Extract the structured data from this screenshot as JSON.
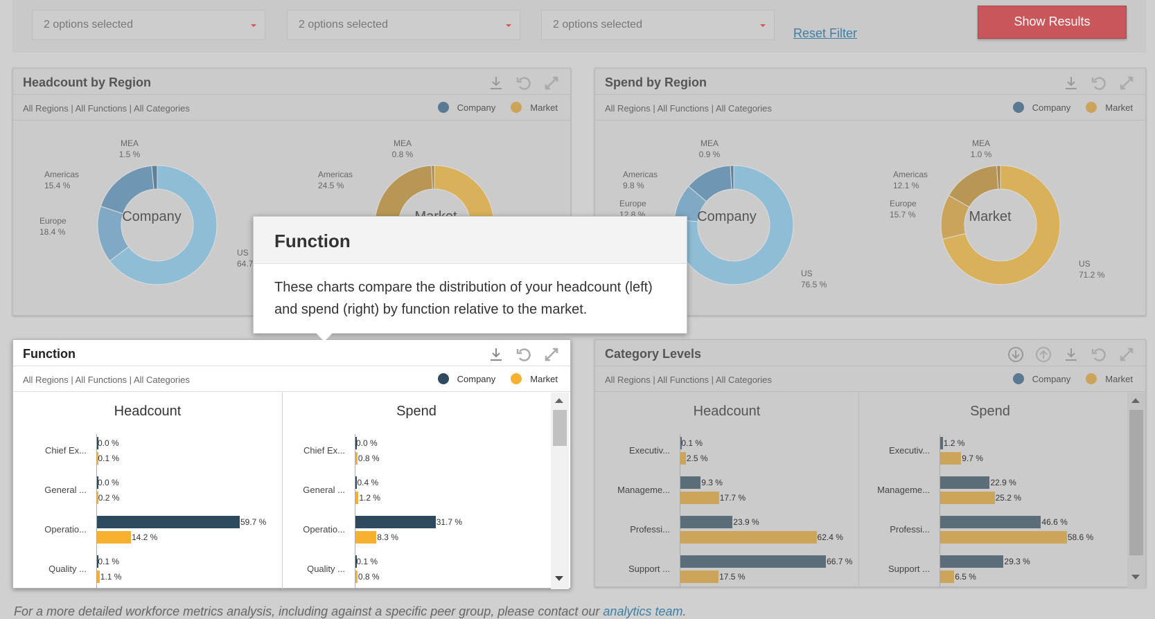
{
  "filters": [
    {
      "value": "2 options selected"
    },
    {
      "value": "2 options selected"
    },
    {
      "value": "2 options selected"
    }
  ],
  "reset_label": "Reset Filter",
  "show_label": "Show Results",
  "breadcrumb": "All Regions | All Functions | All Categories",
  "legend": {
    "company": "Company",
    "market": "Market"
  },
  "colors": {
    "company": "#2d4a5e",
    "market": "#f7b02f",
    "company_dim": "#5a6d79",
    "market_dim": "#cda55a",
    "donut_company": "#8eb8cf",
    "donut_market": "#d8b25e",
    "primary": "#c9565a",
    "link": "#3d7fa6"
  },
  "panels": {
    "headcount_region": {
      "title": "Headcount by Region"
    },
    "spend_region": {
      "title": "Spend by Region"
    },
    "function": {
      "title": "Function"
    },
    "category": {
      "title": "Category Levels"
    }
  },
  "tooltip": {
    "title": "Function",
    "body": "These charts compare the distribution of your headcount (left) and spend (right) by function relative to the market."
  },
  "footer": {
    "text": "For a more detailed workforce metrics analysis, including against a specific peer group, please contact our ",
    "link": "analytics team",
    "end": "."
  },
  "chart_data": [
    {
      "type": "pie",
      "title": "Company",
      "panel": "Headcount by Region",
      "labels": [
        "US",
        "Americas",
        "Europe",
        "MEA"
      ],
      "values": [
        64.7,
        15.4,
        18.4,
        1.5
      ],
      "value_labels": [
        "64.7",
        "15.4 %",
        "18.4 %",
        "1.5 %"
      ]
    },
    {
      "type": "pie",
      "title": "Market",
      "panel": "Headcount by Region",
      "labels": [
        "US",
        "Americas",
        "Europe",
        "MEA"
      ],
      "values": [
        null,
        24.5,
        null,
        0.8
      ],
      "value_labels": [
        "",
        "24.5 %",
        "",
        "0.8 %"
      ]
    },
    {
      "type": "pie",
      "title": "Company",
      "panel": "Spend by Region",
      "labels": [
        "US",
        "Americas",
        "Europe",
        "MEA"
      ],
      "values": [
        76.5,
        9.8,
        12.8,
        0.9
      ],
      "value_labels": [
        "76.5 %",
        "9.8 %",
        "12.8 %",
        "0.9 %"
      ]
    },
    {
      "type": "pie",
      "title": "Market",
      "panel": "Spend by Region",
      "labels": [
        "US",
        "Americas",
        "Europe",
        "MEA"
      ],
      "values": [
        71.2,
        12.1,
        15.7,
        1.0
      ],
      "value_labels": [
        "71.2 %",
        "12.1 %",
        "15.7 %",
        "1.0 %"
      ]
    },
    {
      "type": "bar",
      "title": "Headcount",
      "panel": "Function",
      "categories": [
        "Chief Ex...",
        "General ...",
        "Operatio...",
        "Quality ..."
      ],
      "series": [
        {
          "name": "Company",
          "values": [
            0.0,
            0.0,
            59.7,
            0.1
          ]
        },
        {
          "name": "Market",
          "values": [
            0.1,
            0.2,
            14.2,
            1.1
          ]
        }
      ]
    },
    {
      "type": "bar",
      "title": "Spend",
      "panel": "Function",
      "categories": [
        "Chief Ex...",
        "General ...",
        "Operatio...",
        "Quality ..."
      ],
      "series": [
        {
          "name": "Company",
          "values": [
            0.0,
            0.4,
            31.7,
            0.1
          ]
        },
        {
          "name": "Market",
          "values": [
            0.8,
            1.2,
            8.3,
            0.8
          ]
        }
      ]
    },
    {
      "type": "bar",
      "title": "Headcount",
      "panel": "Category Levels",
      "categories": [
        "Executiv...",
        "Manageme...",
        "Professi...",
        "Support ..."
      ],
      "series": [
        {
          "name": "Company",
          "values": [
            0.1,
            9.3,
            23.9,
            66.7
          ]
        },
        {
          "name": "Market",
          "values": [
            2.5,
            17.7,
            62.4,
            17.5
          ]
        }
      ]
    },
    {
      "type": "bar",
      "title": "Spend",
      "panel": "Category Levels",
      "categories": [
        "Executiv...",
        "Manageme...",
        "Professi...",
        "Support ..."
      ],
      "series": [
        {
          "name": "Company",
          "values": [
            1.2,
            22.9,
            46.6,
            29.3
          ]
        },
        {
          "name": "Market",
          "values": [
            9.7,
            25.2,
            58.6,
            6.5
          ]
        }
      ]
    }
  ]
}
